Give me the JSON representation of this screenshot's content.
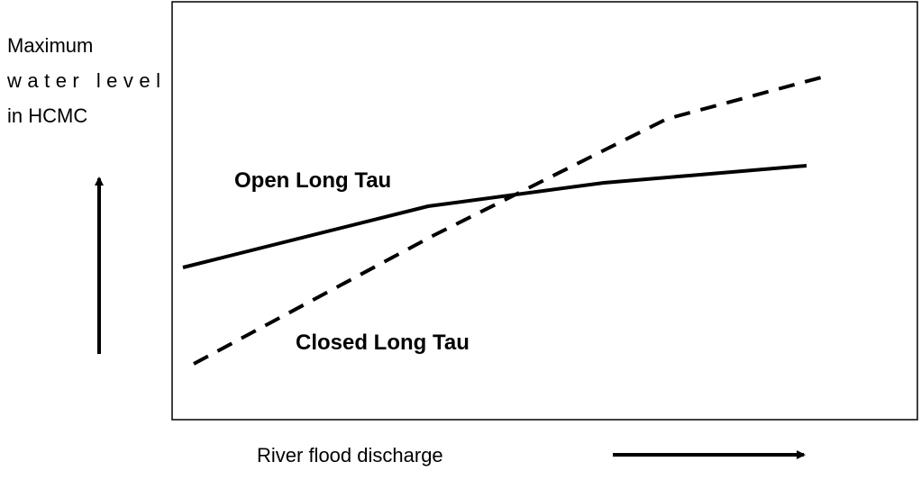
{
  "y_axis_label": {
    "lines": [
      "Maximum",
      "water level",
      "in HCMC"
    ]
  },
  "curves": [
    {
      "label": "Open Long Tau"
    },
    {
      "label": "Closed Long Tau"
    }
  ],
  "x_axis_label": "River flood discharge"
}
